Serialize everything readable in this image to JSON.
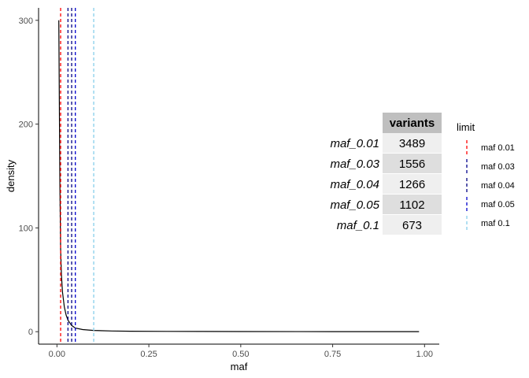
{
  "chart_data": {
    "type": "line",
    "xlabel": "maf",
    "ylabel": "density",
    "xlim": [
      -0.05,
      1.04
    ],
    "ylim": [
      -12,
      312
    ],
    "x_ticks": [
      0.0,
      0.25,
      0.5,
      0.75,
      1.0
    ],
    "x_tick_labels": [
      "0.00",
      "0.25",
      "0.50",
      "0.75",
      "1.00"
    ],
    "y_ticks": [
      0,
      100,
      200,
      300
    ],
    "y_tick_labels": [
      "0",
      "100",
      "200",
      "300"
    ],
    "grid": false,
    "density_curve": {
      "x": [
        0.005,
        0.008,
        0.01,
        0.012,
        0.015,
        0.02,
        0.025,
        0.03,
        0.04,
        0.05,
        0.07,
        0.1,
        0.15,
        0.2,
        0.3,
        0.5,
        0.75,
        0.985
      ],
      "y": [
        300,
        140,
        80,
        55,
        38,
        24,
        16,
        11,
        6,
        3.5,
        2,
        1.2,
        0.7,
        0.45,
        0.3,
        0.15,
        0.08,
        0.03
      ]
    },
    "limit_lines": [
      {
        "name": "maf 0.01",
        "value": 0.01,
        "color": "#ff0000"
      },
      {
        "name": "maf 0.03",
        "value": 0.03,
        "color": "#00008b"
      },
      {
        "name": "maf 0.04",
        "value": 0.04,
        "color": "#000080"
      },
      {
        "name": "maf 0.05",
        "value": 0.05,
        "color": "#0000cd"
      },
      {
        "name": "maf 0.1",
        "value": 0.1,
        "color": "#87ceeb"
      }
    ],
    "legend": {
      "title": "limit",
      "position": "right"
    },
    "table": {
      "header": "variants",
      "rows": [
        {
          "label": "maf_0.01",
          "value": "3489"
        },
        {
          "label": "maf_0.03",
          "value": "1556"
        },
        {
          "label": "maf_0.04",
          "value": "1266"
        },
        {
          "label": "maf_0.05",
          "value": "1102"
        },
        {
          "label": "maf_0.1",
          "value": "673"
        }
      ]
    }
  }
}
